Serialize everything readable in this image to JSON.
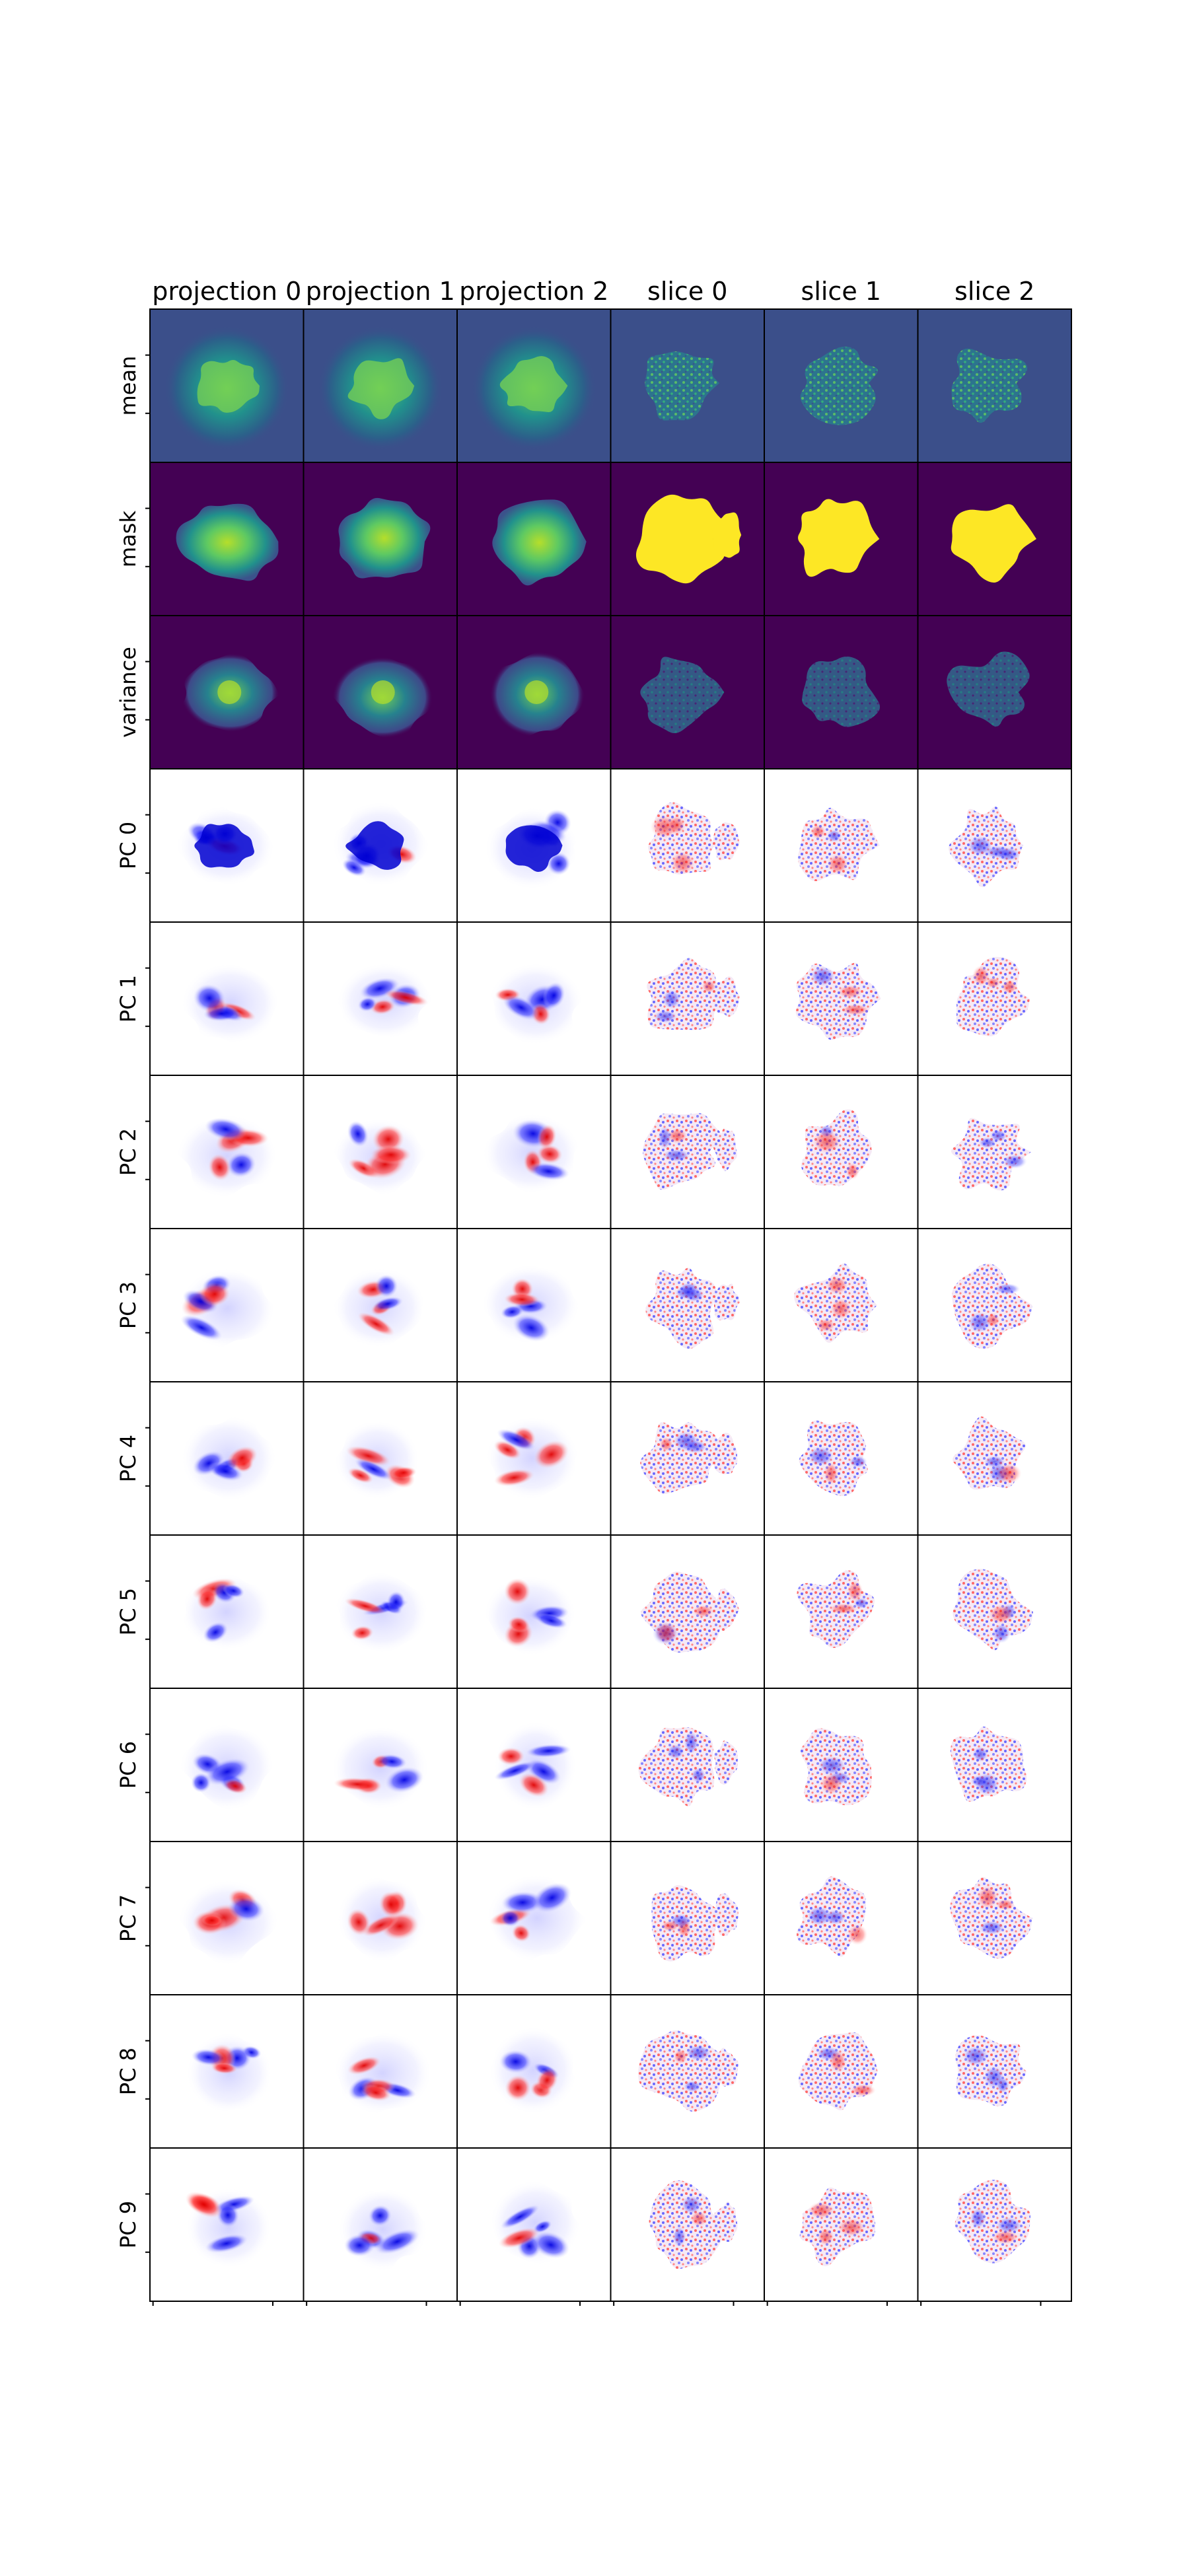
{
  "columns": [
    "projection 0",
    "projection 1",
    "projection 2",
    "slice 0",
    "slice 1",
    "slice 2"
  ],
  "rows": [
    {
      "label": "mean",
      "style": "viridis-mean"
    },
    {
      "label": "mask",
      "style": "viridis-mask"
    },
    {
      "label": "variance",
      "style": "viridis-var"
    },
    {
      "label": "PC 0",
      "style": "diverging"
    },
    {
      "label": "PC 1",
      "style": "diverging"
    },
    {
      "label": "PC 2",
      "style": "diverging"
    },
    {
      "label": "PC 3",
      "style": "diverging"
    },
    {
      "label": "PC 4",
      "style": "diverging"
    },
    {
      "label": "PC 5",
      "style": "diverging"
    },
    {
      "label": "PC 6",
      "style": "diverging"
    },
    {
      "label": "PC 7",
      "style": "diverging"
    },
    {
      "label": "PC 8",
      "style": "diverging"
    },
    {
      "label": "PC 9",
      "style": "diverging"
    }
  ],
  "colors": {
    "viridis_dark": "#440154",
    "viridis_bg_mean": "#3b4f8a",
    "viridis_green": "#35b779",
    "viridis_yellow": "#fde725",
    "diverging_neg": "#0000ff",
    "diverging_pos": "#ff0000",
    "diverging_bg": "#ffffff"
  }
}
